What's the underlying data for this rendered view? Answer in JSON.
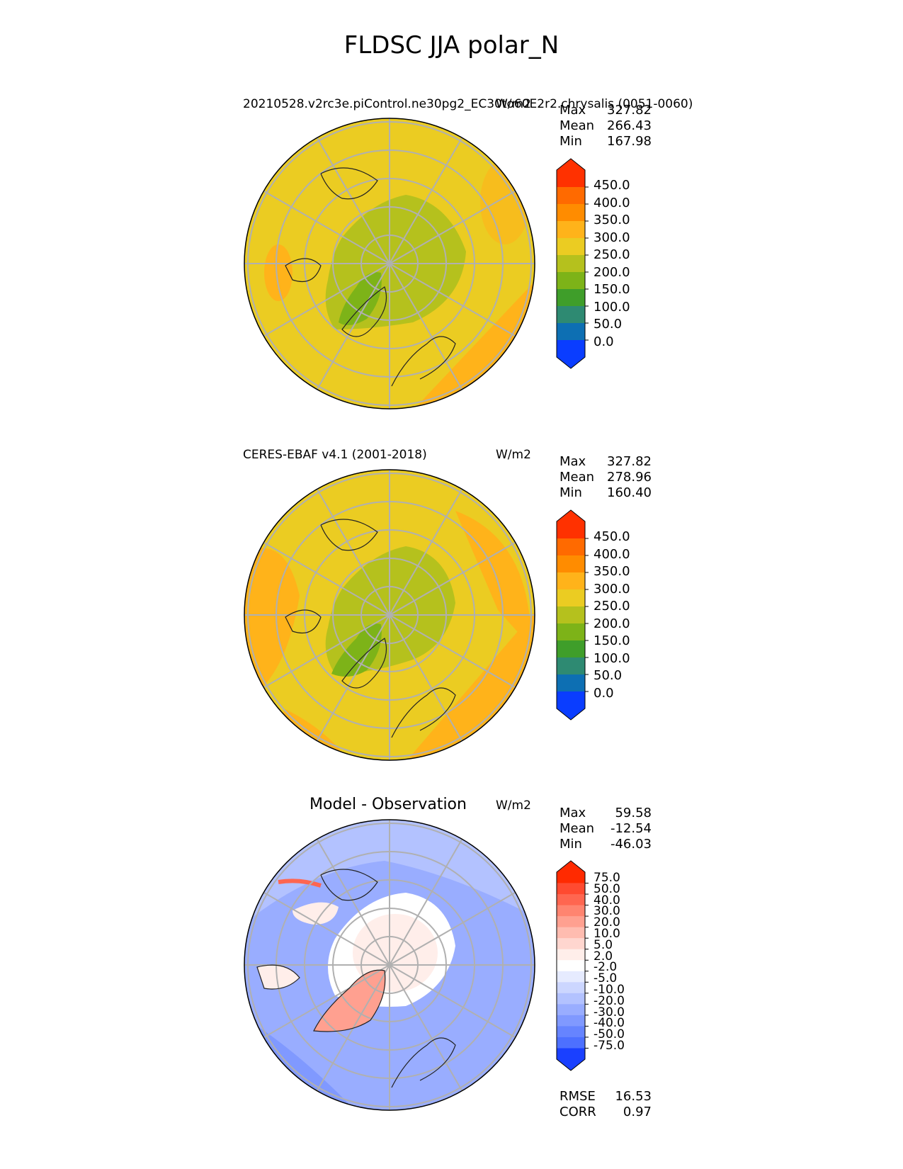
{
  "title": "FLDSC JJA polar_N",
  "panels": [
    {
      "title": "20210528.v2rc3e.piControl.ne30pg2_EC30to60E2r2.chrysalis (0051-0060)",
      "units": "W/m2",
      "stats": [
        {
          "label": "Max",
          "value": "327.82"
        },
        {
          "label": "Mean",
          "value": "266.43"
        },
        {
          "label": "Min",
          "value": "167.98"
        }
      ],
      "colorbar": {
        "ticks": [
          "450.0",
          "400.0",
          "350.0",
          "300.0",
          "250.0",
          "200.0",
          "150.0",
          "100.0",
          "50.0",
          "0.0"
        ],
        "colors": [
          "#ff3100",
          "#ff6a00",
          "#ff8c00",
          "#ffb31a",
          "#ebcc22",
          "#b5c11d",
          "#7db318",
          "#3f9e2a",
          "#2e8a72",
          "#0d6fb3",
          "#0a3dff"
        ]
      }
    },
    {
      "title": "CERES-EBAF v4.1 (2001-2018)",
      "units": "W/m2",
      "stats": [
        {
          "label": "Max",
          "value": "327.82"
        },
        {
          "label": "Mean",
          "value": "278.96"
        },
        {
          "label": "Min",
          "value": "160.40"
        }
      ],
      "colorbar": {
        "ticks": [
          "450.0",
          "400.0",
          "350.0",
          "300.0",
          "250.0",
          "200.0",
          "150.0",
          "100.0",
          "50.0",
          "0.0"
        ],
        "colors": [
          "#ff3100",
          "#ff6a00",
          "#ff8c00",
          "#ffb31a",
          "#ebcc22",
          "#b5c11d",
          "#7db318",
          "#3f9e2a",
          "#2e8a72",
          "#0d6fb3",
          "#0a3dff"
        ]
      }
    },
    {
      "title": "Model - Observation",
      "units": "W/m2",
      "stats": [
        {
          "label": "Max",
          "value": "59.58"
        },
        {
          "label": "Mean",
          "value": "-12.54"
        },
        {
          "label": "Min",
          "value": "-46.03"
        }
      ],
      "colorbar": {
        "ticks": [
          "75.0",
          "50.0",
          "40.0",
          "30.0",
          "20.0",
          "10.0",
          "5.0",
          "2.0",
          "-2.0",
          "-5.0",
          "-10.0",
          "-20.0",
          "-30.0",
          "-40.0",
          "-50.0",
          "-75.0"
        ],
        "colors": [
          "#ff2a00",
          "#ff4a30",
          "#ff6650",
          "#ff8470",
          "#ffa090",
          "#ffbcb0",
          "#ffd6cf",
          "#ffeeea",
          "#ffffff",
          "#e6ebff",
          "#ccd6ff",
          "#b3c2ff",
          "#99adff",
          "#8099ff",
          "#6684ff",
          "#4d70ff",
          "#1a40ff"
        ]
      },
      "footer": [
        {
          "label": "RMSE",
          "value": "16.53"
        },
        {
          "label": "CORR",
          "value": "0.97"
        }
      ]
    }
  ],
  "chart_data": [
    {
      "type": "heatmap",
      "projection": "north polar stereographic",
      "title": "20210528.v2rc3e.piControl.ne30pg2_EC30to60E2r2.chrysalis (0051-0060)",
      "units": "W/m2",
      "max": 327.82,
      "mean": 266.43,
      "min": 167.98,
      "levels": [
        0,
        50,
        100,
        150,
        200,
        250,
        300,
        350,
        400,
        450
      ],
      "extend": "both",
      "grid": true
    },
    {
      "type": "heatmap",
      "projection": "north polar stereographic",
      "title": "CERES-EBAF v4.1 (2001-2018)",
      "units": "W/m2",
      "max": 327.82,
      "mean": 278.96,
      "min": 160.4,
      "levels": [
        0,
        50,
        100,
        150,
        200,
        250,
        300,
        350,
        400,
        450
      ],
      "extend": "both",
      "grid": true
    },
    {
      "type": "heatmap",
      "projection": "north polar stereographic",
      "title": "Model - Observation",
      "units": "W/m2",
      "max": 59.58,
      "mean": -12.54,
      "min": -46.03,
      "rmse": 16.53,
      "corr": 0.97,
      "levels": [
        -75,
        -50,
        -40,
        -30,
        -20,
        -10,
        -5,
        -2,
        2,
        5,
        10,
        20,
        30,
        40,
        50,
        75
      ],
      "extend": "both",
      "grid": true
    }
  ]
}
